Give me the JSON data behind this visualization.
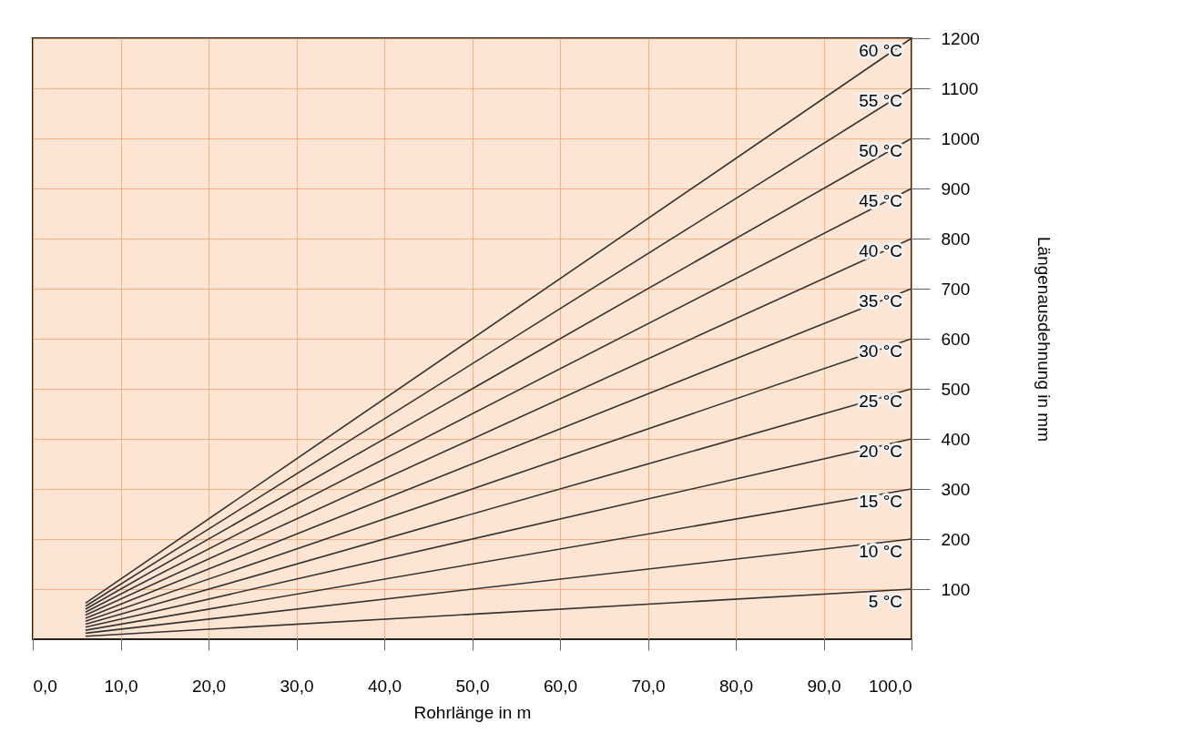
{
  "chart_data": {
    "type": "line",
    "xlabel": "Rohrlänge in m",
    "ylabel": "Längenausdehnung in mm",
    "xlim": [
      0,
      100
    ],
    "ylim": [
      0,
      1200
    ],
    "xticks": [
      {
        "value": 0,
        "label": "0,0"
      },
      {
        "value": 10,
        "label": "10,0"
      },
      {
        "value": 20,
        "label": "20,0"
      },
      {
        "value": 30,
        "label": "30,0"
      },
      {
        "value": 40,
        "label": "40,0"
      },
      {
        "value": 50,
        "label": "50,0"
      },
      {
        "value": 60,
        "label": "60,0"
      },
      {
        "value": 70,
        "label": "70,0"
      },
      {
        "value": 80,
        "label": "80,0"
      },
      {
        "value": 90,
        "label": "90,0"
      },
      {
        "value": 100,
        "label": "100,0"
      }
    ],
    "yticks": [
      100,
      200,
      300,
      400,
      500,
      600,
      700,
      800,
      900,
      1000,
      1100,
      1200
    ],
    "grid": true,
    "legend": false,
    "marker": "none",
    "line_style": "solid",
    "x": [
      6,
      100
    ],
    "series": [
      {
        "name": "5 °C",
        "color": "#333333",
        "values": [
          6,
          100
        ]
      },
      {
        "name": "10 °C",
        "color": "#333333",
        "values": [
          12,
          200
        ]
      },
      {
        "name": "15 °C",
        "color": "#333333",
        "values": [
          18,
          300
        ]
      },
      {
        "name": "20 °C",
        "color": "#333333",
        "values": [
          24,
          400
        ]
      },
      {
        "name": "25 °C",
        "color": "#333333",
        "values": [
          30,
          500
        ]
      },
      {
        "name": "30 °C",
        "color": "#333333",
        "values": [
          36,
          600
        ]
      },
      {
        "name": "35 °C",
        "color": "#333333",
        "values": [
          42,
          700
        ]
      },
      {
        "name": "40 °C",
        "color": "#333333",
        "values": [
          48,
          800
        ]
      },
      {
        "name": "45 °C",
        "color": "#333333",
        "values": [
          54,
          900
        ]
      },
      {
        "name": "50 °C",
        "color": "#333333",
        "values": [
          60,
          1000
        ]
      },
      {
        "name": "55 °C",
        "color": "#333333",
        "values": [
          66,
          1100
        ]
      },
      {
        "name": "60 °C",
        "color": "#333333",
        "values": [
          72,
          1200
        ]
      }
    ]
  }
}
